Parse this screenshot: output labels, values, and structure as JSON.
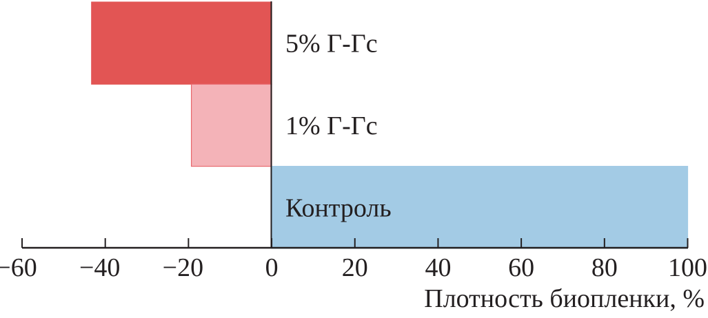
{
  "chart_data": {
    "type": "bar",
    "orientation": "horizontal",
    "categories": [
      "5% Г-Гс",
      "1% Г-Гс",
      "Контроль"
    ],
    "values": [
      -43.3,
      -19.3,
      100
    ],
    "colors": [
      "#e25554",
      "#f4b3b8",
      "#a3cbe5"
    ],
    "xlabel": "Плотность биопленки, %",
    "ylabel": "",
    "xlim": [
      -60,
      100
    ],
    "xticks": [
      -60,
      -40,
      -20,
      0,
      20,
      40,
      60,
      80,
      100
    ],
    "xtick_labels": [
      "−60",
      "−40",
      "−20",
      "0",
      "20",
      "40",
      "60",
      "80",
      "100"
    ],
    "grid": false
  }
}
